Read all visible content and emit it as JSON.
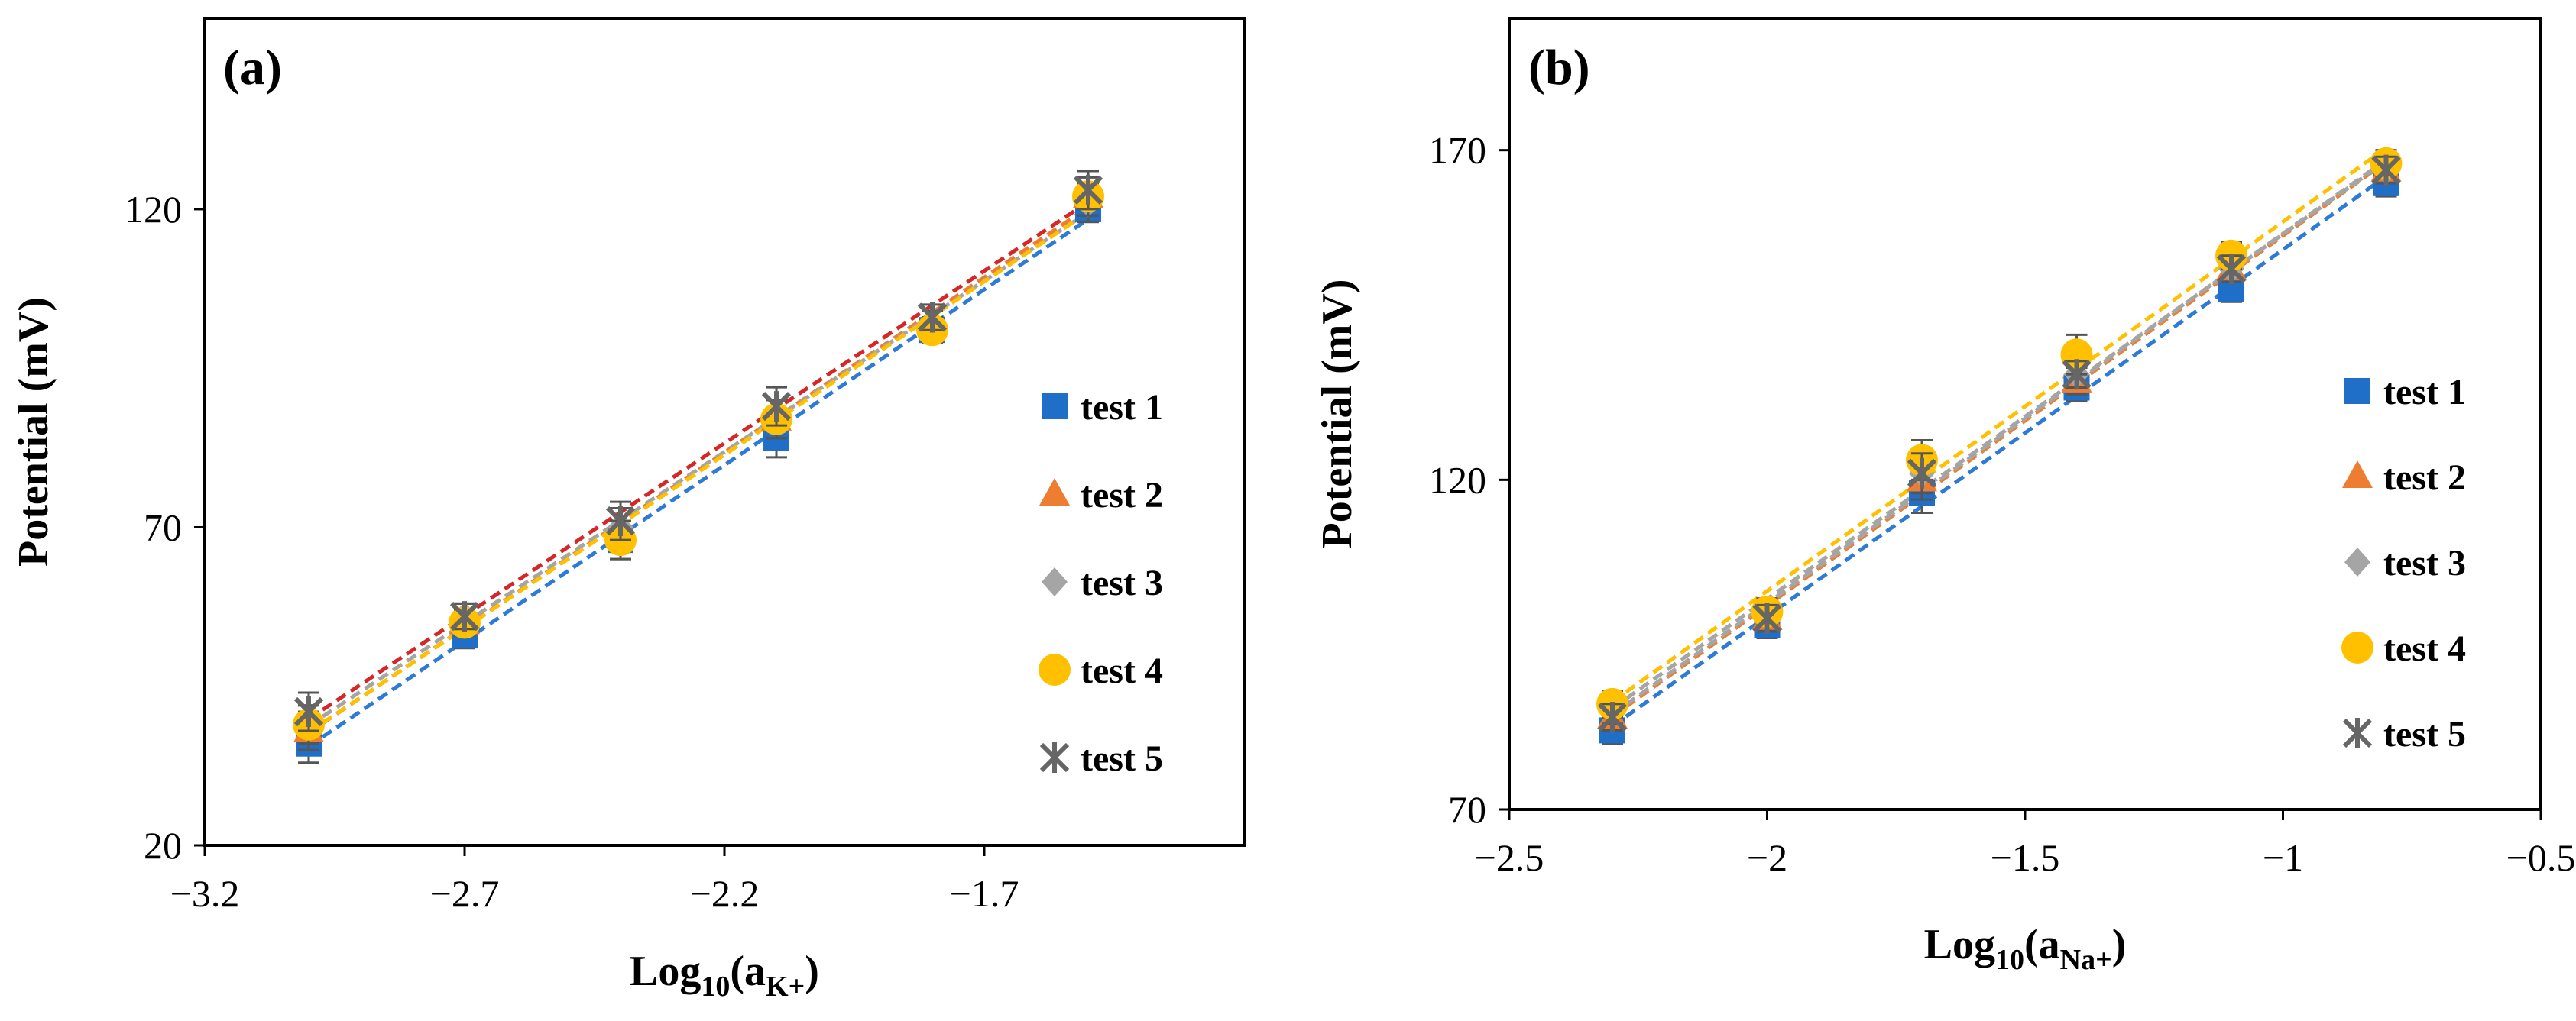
{
  "chart_data": [
    {
      "type": "scatter",
      "panel_label": "(a)",
      "ylabel": "Potential (mV)",
      "xlabel": {
        "base": "Log",
        "sub1": "10",
        "open": "(a",
        "sub2": "K+",
        "close": ")"
      },
      "xlim": [
        -3.2,
        -1.2
      ],
      "ylim": [
        20,
        150
      ],
      "xticks": [
        -3.2,
        -2.7,
        -2.2,
        -1.7
      ],
      "xtick_labels": [
        "−3.2",
        "−2.7",
        "−2.2",
        "−1.7"
      ],
      "yticks": [
        20,
        70,
        120
      ],
      "ytick_labels": [
        "20",
        "70",
        "120"
      ],
      "x": [
        -3.0,
        -2.7,
        -2.4,
        -2.1,
        -1.8,
        -1.5
      ],
      "legend_position": "right",
      "series": [
        {
          "name": "test 1",
          "color": "#1f6fc8",
          "trend_color": "#2e7bd6",
          "marker": "square",
          "values": [
            36,
            53,
            68,
            84,
            101,
            120
          ],
          "errors": [
            3,
            2,
            3,
            3,
            2,
            2
          ]
        },
        {
          "name": "test 2",
          "color": "#ed7d31",
          "trend_color": "#ed7d31",
          "marker": "triangle",
          "values": [
            38,
            55,
            70,
            87,
            102,
            122
          ],
          "errors": [
            3,
            2,
            3,
            3,
            2,
            3
          ]
        },
        {
          "name": "test 3",
          "color": "#a5a5a5",
          "trend_color": "#a5a5a5",
          "marker": "diamond",
          "values": [
            39,
            56,
            70,
            87,
            102,
            121
          ],
          "errors": [
            3,
            2,
            3,
            3,
            2,
            3
          ]
        },
        {
          "name": "test 4",
          "color": "#ffc000",
          "trend_color": "#ffc000",
          "marker": "circle",
          "values": [
            39,
            55,
            68,
            87,
            101,
            122
          ],
          "errors": [
            3,
            2,
            3,
            3,
            2,
            3
          ]
        },
        {
          "name": "test 5",
          "color": "#666666",
          "trend_color": "#d62728",
          "marker": "star",
          "values": [
            41,
            56,
            71,
            89,
            103,
            123
          ],
          "errors": [
            3,
            2,
            3,
            3,
            2,
            3
          ]
        }
      ]
    },
    {
      "type": "scatter",
      "panel_label": "(b)",
      "ylabel": "Potential (mV)",
      "xlabel": {
        "base": "Log",
        "sub1": "10",
        "open": "(a",
        "sub2": "Na+",
        "close": ")"
      },
      "xlim": [
        -2.5,
        -0.5
      ],
      "ylim": [
        70,
        190
      ],
      "xticks": [
        -2.5,
        -2,
        -1.5,
        -1,
        -0.5
      ],
      "xtick_labels": [
        "−2.5",
        "−2",
        "−1.5",
        "−1",
        "−0.5"
      ],
      "yticks": [
        70,
        120,
        170
      ],
      "ytick_labels": [
        "70",
        "120",
        "170"
      ],
      "x": [
        -2.3,
        -2.0,
        -1.7,
        -1.4,
        -1.1,
        -0.8
      ],
      "legend_position": "right",
      "series": [
        {
          "name": "test 1",
          "color": "#1f6fc8",
          "trend_color": "#2e7bd6",
          "marker": "square",
          "values": [
            82,
            98,
            118,
            134,
            149,
            165
          ],
          "errors": [
            2,
            2,
            3,
            2,
            2,
            2
          ]
        },
        {
          "name": "test 2",
          "color": "#ed7d31",
          "trend_color": "#ed7d31",
          "marker": "triangle",
          "values": [
            84,
            99,
            120,
            135,
            152,
            167
          ],
          "errors": [
            2,
            2,
            3,
            2,
            2,
            2
          ]
        },
        {
          "name": "test 3",
          "color": "#a5a5a5",
          "trend_color": "#a5a5a5",
          "marker": "diamond",
          "values": [
            85,
            100,
            121,
            136,
            152,
            167
          ],
          "errors": [
            2,
            2,
            3,
            2,
            2,
            2
          ]
        },
        {
          "name": "test 4",
          "color": "#ffc000",
          "trend_color": "#ffc000",
          "marker": "circle",
          "values": [
            86,
            100,
            123,
            139,
            154,
            168
          ],
          "errors": [
            2,
            2,
            3,
            3,
            2,
            2
          ]
        },
        {
          "name": "test 5",
          "color": "#666666",
          "trend_color": "#a5a5a5",
          "marker": "star",
          "values": [
            84,
            99,
            121,
            136,
            152,
            167
          ],
          "errors": [
            2,
            2,
            3,
            2,
            2,
            2
          ]
        }
      ]
    }
  ]
}
